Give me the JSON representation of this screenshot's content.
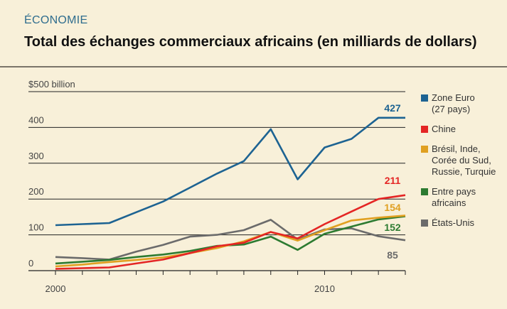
{
  "header": {
    "kicker": "ÉCONOMIE",
    "title": "Total des échanges commerciaux africains (en milliards de dollars)"
  },
  "chart_data": {
    "type": "line",
    "title": "Total des échanges commerciaux africains (en milliards de dollars)",
    "ylabel": "",
    "ylim": [
      0,
      500
    ],
    "xlim": [
      2000,
      2013
    ],
    "yticks": [
      {
        "value": 0,
        "label": "0"
      },
      {
        "value": 100,
        "label": "100"
      },
      {
        "value": 200,
        "label": "200"
      },
      {
        "value": 300,
        "label": "300"
      },
      {
        "value": 400,
        "label": "400"
      },
      {
        "value": 500,
        "label": "$500 billion"
      }
    ],
    "xticks": [
      {
        "value": 2000,
        "label": "2000"
      },
      {
        "value": 2010,
        "label": "2010"
      }
    ],
    "grid": true,
    "legend_position": "right",
    "x": [
      2000,
      2001,
      2002,
      2003,
      2004,
      2005,
      2006,
      2007,
      2008,
      2009,
      2010,
      2011,
      2012,
      2013
    ],
    "series": [
      {
        "name": "Zone Euro\n(27 pays)",
        "color": "#1d6392",
        "end_label": "427",
        "values": [
          127,
          130,
          133,
          163,
          193,
          232,
          271,
          306,
          395,
          255,
          344,
          368,
          427,
          427
        ]
      },
      {
        "name": "Chine",
        "color": "#e42524",
        "end_label": "211",
        "values": [
          5,
          7,
          9,
          20,
          31,
          49,
          68,
          78,
          108,
          90,
          130,
          165,
          200,
          211
        ]
      },
      {
        "name": "Brésil, Inde,\nCorée du Sud,\nRussie, Turquie",
        "color": "#e0a021",
        "end_label": "154",
        "values": [
          12,
          17,
          24,
          30,
          37,
          49,
          63,
          82,
          108,
          84,
          113,
          140,
          148,
          154
        ]
      },
      {
        "name": "Entre pays\nafricains",
        "color": "#2d7b31",
        "end_label": "152",
        "values": [
          20,
          25,
          30,
          38,
          45,
          55,
          69,
          73,
          95,
          58,
          103,
          123,
          143,
          152
        ]
      },
      {
        "name": "États-Unis",
        "color": "#6b6b6b",
        "end_label": "85",
        "values": [
          38,
          35,
          31,
          53,
          72,
          95,
          100,
          113,
          142,
          87,
          115,
          118,
          96,
          85
        ]
      }
    ]
  }
}
